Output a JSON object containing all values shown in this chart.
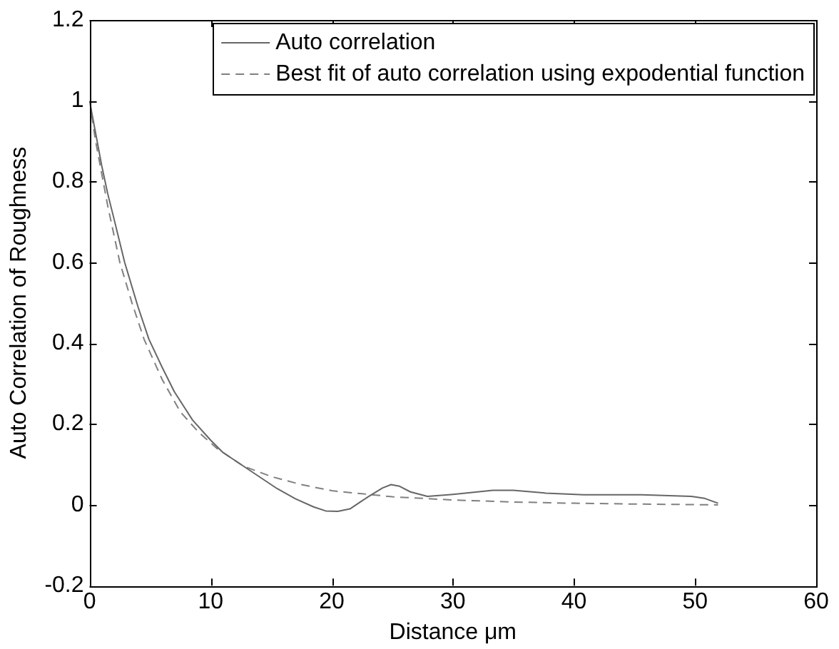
{
  "chart_data": {
    "type": "line",
    "xlabel": "Distance μm",
    "ylabel": "Auto Correlation of Roughness",
    "xlim": [
      0,
      60
    ],
    "xticks": [
      0,
      10,
      20,
      30,
      40,
      50,
      60
    ],
    "ylim": [
      -0.2,
      1.2
    ],
    "yticks": [
      -0.2,
      0,
      0.2,
      0.4,
      0.6,
      0.8,
      1,
      1.2
    ],
    "grid": false,
    "legend": "top right",
    "marker": "none",
    "series": [
      {
        "name": "Auto correlation",
        "color": "#666666",
        "line_style": "solid",
        "x": [
          0,
          0.5,
          1,
          1.5,
          2,
          2.9,
          4,
          4.9,
          6,
          7,
          8.5,
          10,
          11,
          12.7,
          14,
          15.5,
          17,
          18.5,
          19.5,
          20.5,
          21.5,
          23,
          24.2,
          24.9,
          25.6,
          26.5,
          27.9,
          30,
          33.3,
          35,
          37.7,
          40.8,
          45.6,
          49.7,
          50.8,
          51.9
        ],
        "values": [
          1,
          0.92,
          0.84,
          0.77,
          0.71,
          0.6,
          0.49,
          0.41,
          0.34,
          0.28,
          0.21,
          0.16,
          0.13,
          0.096,
          0.07,
          0.04,
          0.015,
          -0.005,
          -0.015,
          -0.016,
          -0.01,
          0.02,
          0.042,
          0.05,
          0.046,
          0.032,
          0.021,
          0.026,
          0.036,
          0.036,
          0.029,
          0.025,
          0.025,
          0.021,
          0.016,
          0.004
        ]
      },
      {
        "name": "Best fit of auto correlation using expodential function",
        "color": "#808080",
        "line_style": "dashed",
        "x": [
          0,
          0.5,
          1,
          1.5,
          2,
          2.5,
          3.5,
          4.5,
          6,
          7.5,
          9,
          10.5,
          12.7,
          15,
          17.5,
          20,
          25,
          30,
          35,
          40,
          45,
          51.9
        ],
        "values": [
          1,
          0.9,
          0.82,
          0.74,
          0.67,
          0.6,
          0.5,
          0.41,
          0.31,
          0.23,
          0.18,
          0.14,
          0.096,
          0.07,
          0.05,
          0.035,
          0.02,
          0.012,
          0.007,
          0.004,
          0.002,
          0
        ]
      }
    ]
  }
}
